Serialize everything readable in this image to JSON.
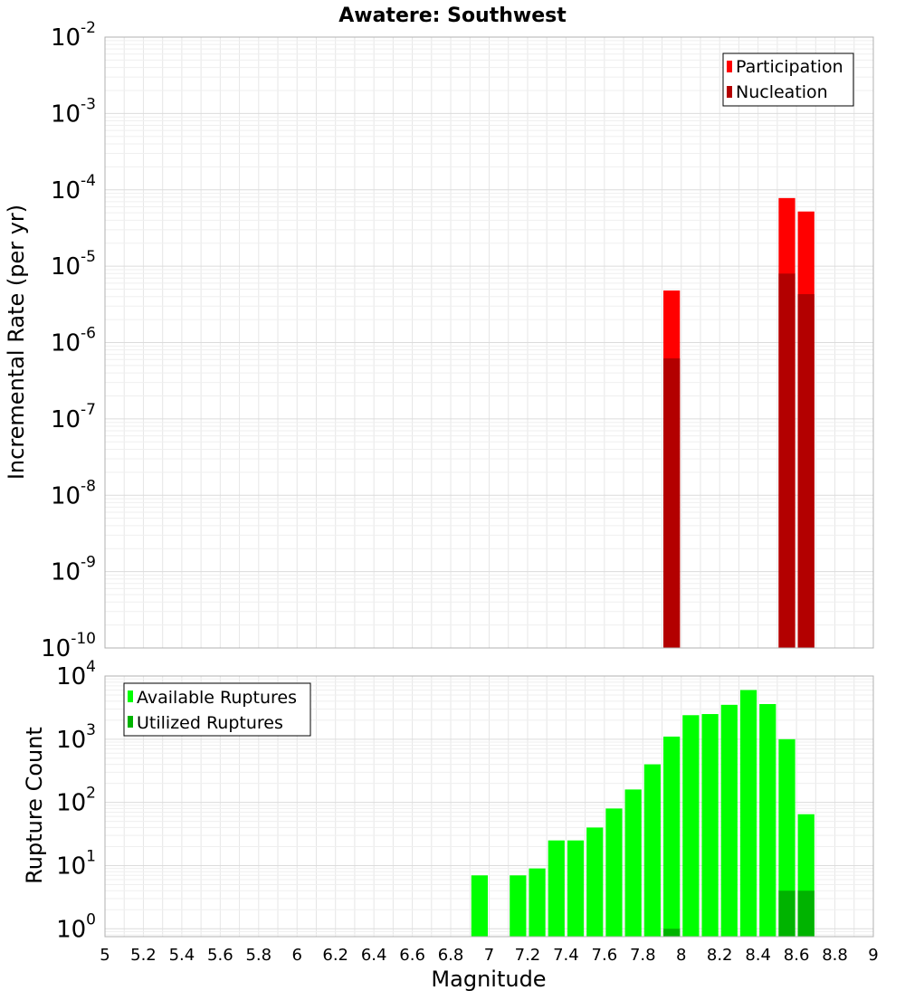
{
  "chart_data": [
    {
      "type": "bar",
      "title": "Awatere: Southwest",
      "xlabel": "Magnitude",
      "ylabel": "Incremental Rate (per yr)",
      "yscale": "log",
      "ylim": [
        1e-10,
        0.01
      ],
      "xlim": [
        5,
        9
      ],
      "bin_width": 0.1,
      "legend_position": "top-right",
      "grid": true,
      "series": [
        {
          "name": "Participation",
          "color": "#ff0000",
          "x": [
            7.95,
            8.55,
            8.65
          ],
          "values": [
            4.8e-06,
            7.8e-05,
            5.2e-05
          ]
        },
        {
          "name": "Nucleation",
          "color": "#b30000",
          "x": [
            7.95,
            8.55,
            8.65
          ],
          "values": [
            6.2e-07,
            8e-06,
            4.3e-06
          ]
        }
      ],
      "y_ticks": [
        {
          "base": "10",
          "exp": "-10",
          "value": 1e-10
        },
        {
          "base": "10",
          "exp": "-9",
          "value": 1e-09
        },
        {
          "base": "10",
          "exp": "-8",
          "value": 1e-08
        },
        {
          "base": "10",
          "exp": "-7",
          "value": 1e-07
        },
        {
          "base": "10",
          "exp": "-6",
          "value": 1e-06
        },
        {
          "base": "10",
          "exp": "-5",
          "value": 1e-05
        },
        {
          "base": "10",
          "exp": "-4",
          "value": 0.0001
        },
        {
          "base": "10",
          "exp": "-3",
          "value": 0.001
        },
        {
          "base": "10",
          "exp": "-2",
          "value": 0.01
        }
      ]
    },
    {
      "type": "bar",
      "xlabel": "Magnitude",
      "ylabel": "Rupture Count",
      "yscale": "log",
      "ylim": [
        0.75,
        10000
      ],
      "xlim": [
        5,
        9
      ],
      "bin_width": 0.1,
      "legend_position": "top-left",
      "grid": true,
      "series": [
        {
          "name": "Available Ruptures",
          "color": "#00ff00",
          "x": [
            6.95,
            7.15,
            7.25,
            7.35,
            7.45,
            7.55,
            7.65,
            7.75,
            7.85,
            7.95,
            8.05,
            8.15,
            8.25,
            8.35,
            8.45,
            8.55,
            8.65
          ],
          "values": [
            7,
            7,
            9,
            25,
            25,
            40,
            80,
            160,
            400,
            1100,
            2400,
            2500,
            3500,
            6000,
            3600,
            1000,
            65
          ]
        },
        {
          "name": "Utilized Ruptures",
          "color": "#00b300",
          "x": [
            7.95,
            8.55,
            8.65
          ],
          "values": [
            1,
            4,
            4
          ]
        }
      ],
      "y_ticks": [
        {
          "base": "10",
          "exp": "0",
          "value": 1
        },
        {
          "base": "10",
          "exp": "1",
          "value": 10
        },
        {
          "base": "10",
          "exp": "2",
          "value": 100
        },
        {
          "base": "10",
          "exp": "3",
          "value": 1000
        },
        {
          "base": "10",
          "exp": "4",
          "value": 10000
        }
      ],
      "x_ticks": [
        "5",
        "5.2",
        "5.4",
        "5.6",
        "5.8",
        "6",
        "6.2",
        "6.4",
        "6.6",
        "6.8",
        "7",
        "7.2",
        "7.4",
        "7.6",
        "7.8",
        "8",
        "8.2",
        "8.4",
        "8.6",
        "8.8",
        "9"
      ]
    }
  ]
}
